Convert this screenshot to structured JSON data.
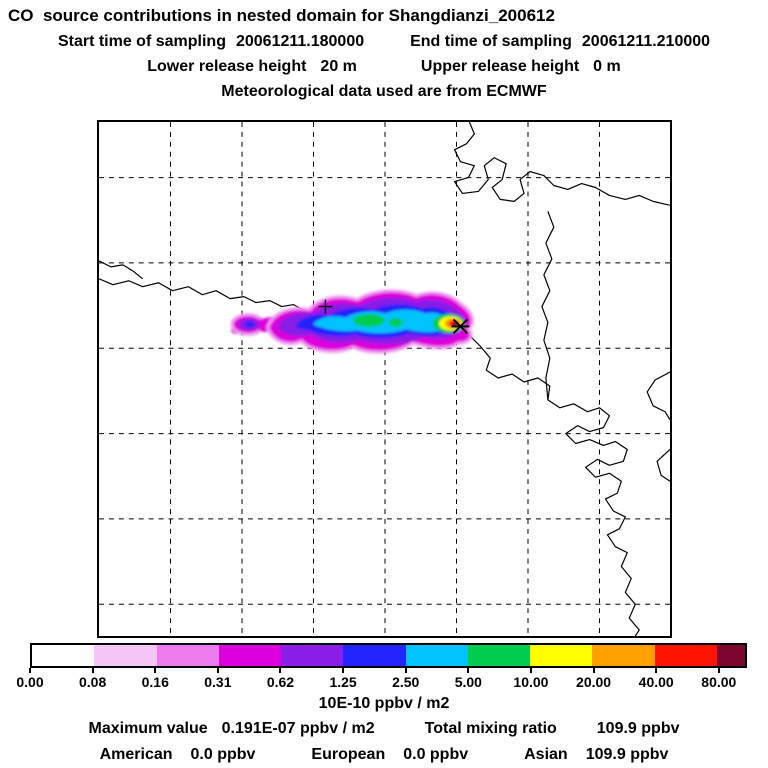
{
  "title": "CO  source contributions in nested domain for Shangdianzi_200612",
  "header": {
    "start_time_label": "Start time of sampling",
    "start_time_value": "20061211.180000",
    "end_time_label": "End time of sampling",
    "end_time_value": "20061211.210000",
    "lower_release_label": "Lower release height",
    "lower_release_value": "20 m",
    "upper_release_label": "Upper release height",
    "upper_release_value": "0 m",
    "met_data_line": "Meteorological data used are from ECMWF"
  },
  "colorbar": {
    "tick_labels": [
      "0.00",
      "0.08",
      "0.16",
      "0.31",
      "0.62",
      "1.25",
      "2.50",
      "5.00",
      "10.00",
      "20.00",
      "40.00",
      "80.00"
    ],
    "colors": [
      "#ffffff",
      "#f6c6f6",
      "#ee7bee",
      "#dd00dd",
      "#8a1fe8",
      "#2424ff",
      "#00c3ff",
      "#00cc4e",
      "#ffff00",
      "#ffa000",
      "#ff1400",
      "#7e0530"
    ],
    "units_label": "10E-10 ppbv / m2"
  },
  "footer": {
    "maximum_label": "Maximum value",
    "maximum_value": "0.191E-07 ppbv / m2",
    "mixing_label": "Total mixing ratio",
    "mixing_value": "109.9 ppbv",
    "american_label": "American",
    "american_value": "0.0 ppbv",
    "european_label": "European",
    "european_value": "0.0 ppbv",
    "asian_label": "Asian",
    "asian_value": "109.9 ppbv"
  },
  "chart_data": {
    "type": "heatmap",
    "title": "CO source contributions in nested domain for Shangdianzi_200612",
    "receptor": "Shangdianzi_200612",
    "sampling_start": "20061211.180000",
    "sampling_end": "20061211.210000",
    "lower_release_height_m": 20,
    "upper_release_height_m": 0,
    "meteorological_data": "ECMWF",
    "units": "10E-10 ppbv / m2",
    "color_scale_levels": [
      0.0,
      0.08,
      0.16,
      0.31,
      0.62,
      1.25,
      2.5,
      5.0,
      10.0,
      20.0,
      40.0,
      80.0
    ],
    "color_scale_colors": [
      "#ffffff",
      "#f6c6f6",
      "#ee7bee",
      "#dd00dd",
      "#8a1fe8",
      "#2424ff",
      "#00c3ff",
      "#00cc4e",
      "#ffff00",
      "#ffa000",
      "#ff1400",
      "#7e0530"
    ],
    "maximum_value": "0.191E-07 ppbv / m2",
    "total_mixing_ratio": "109.9 ppbv",
    "contributions_ppbv": {
      "American": 0.0,
      "European": 0.0,
      "Asian": 109.9
    },
    "plume": {
      "description": "Elongated east-west source-contribution plume in the map center; values increase eastward from magenta/violet (low) through blue, cyan and green to a yellow-orange-red maximum (>80) at the receptor marker at the plume's eastern tip.",
      "extent_fraction_of_map": {
        "x_min": 0.25,
        "x_max": 0.66,
        "y_min": 0.33,
        "y_max": 0.45
      },
      "peak_location_fraction_of_map": {
        "x": 0.62,
        "y": 0.4
      }
    },
    "grid": "dashed latitude-longitude graticule",
    "basemap": "coastlines and borders of the northeastern China / Bohai Sea region"
  }
}
